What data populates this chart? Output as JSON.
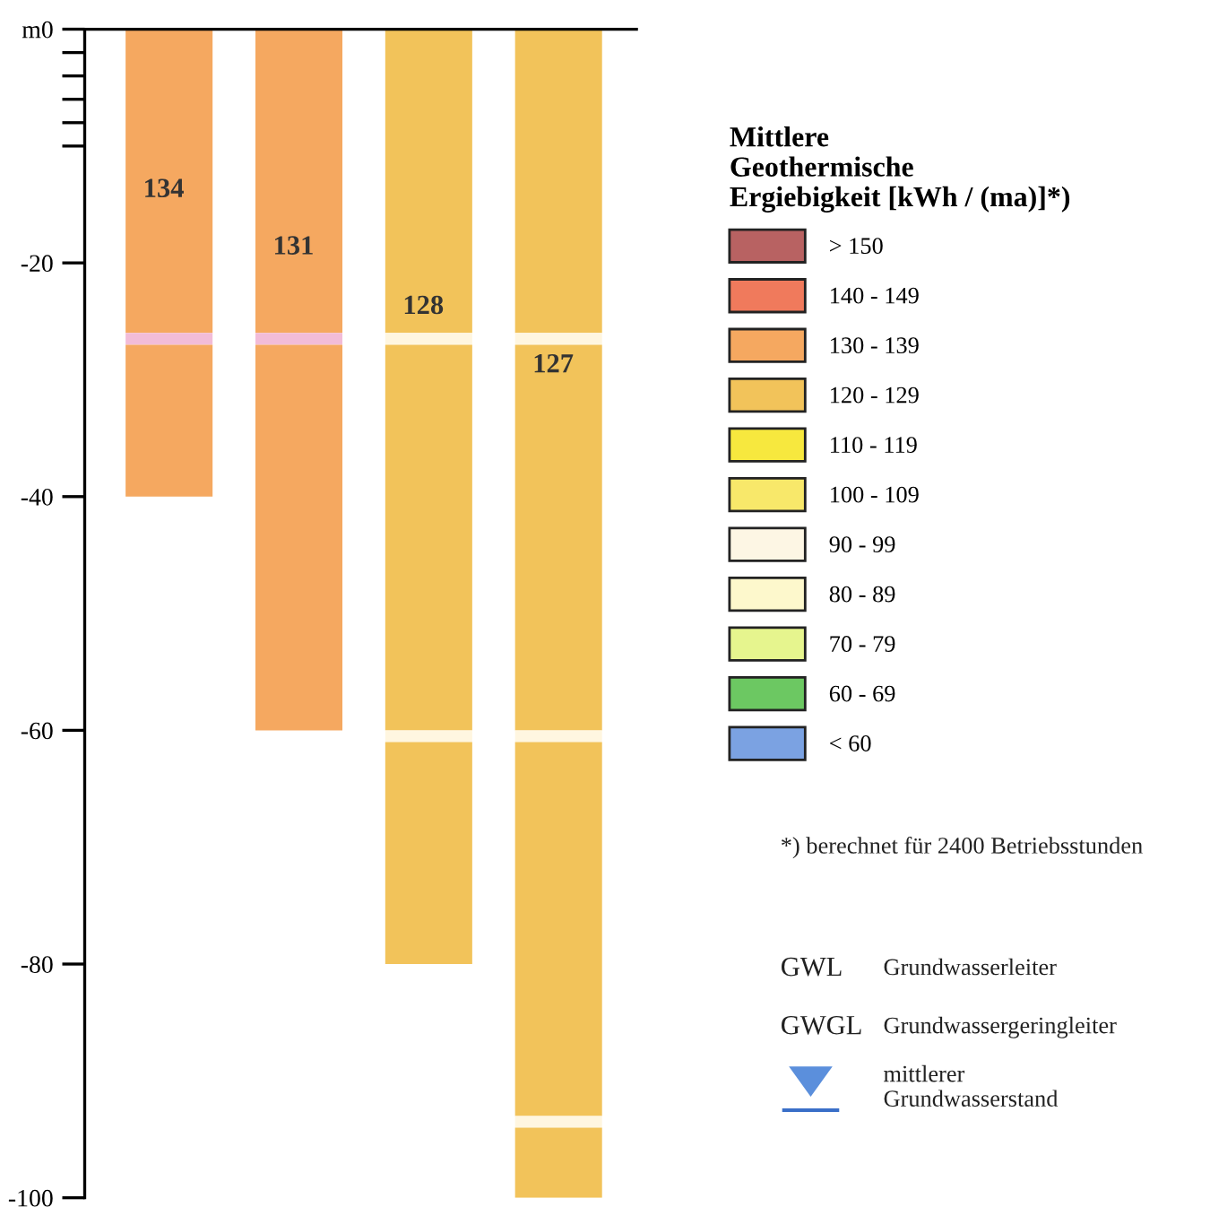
{
  "chart_data": {
    "type": "bar",
    "stacked": true,
    "categories": [
      null,
      null,
      null,
      null
    ],
    "series": [
      {
        "colors": [
          "#f5a860",
          "#f5a860",
          "#f2c35a",
          "#f2c35a"
        ],
        "values": [
          -26,
          -26,
          -26,
          -26
        ]
      },
      {
        "colors": [
          "#f2bcd8",
          "#f2bcd8",
          "#fff6e0",
          "#fff6e0"
        ],
        "values": [
          -1,
          -1,
          -1,
          -1
        ]
      },
      {
        "colors": [
          "#f5a860",
          "#f5a860",
          "#f2c35a",
          "#f2c35a"
        ],
        "values": [
          -13,
          -33,
          -33,
          -33
        ]
      },
      {
        "colors": [
          null,
          null,
          "#fff6e0",
          "#fff6e0"
        ],
        "values": [
          null,
          null,
          -1,
          -1
        ]
      },
      {
        "colors": [
          null,
          null,
          "#f2c35a",
          "#f2c35a"
        ],
        "values": [
          null,
          null,
          -19,
          -32
        ]
      },
      {
        "colors": [
          null,
          null,
          null,
          "#fff6e0"
        ],
        "values": [
          null,
          null,
          null,
          -1
        ]
      },
      {
        "colors": [
          null,
          null,
          null,
          "#f2c35a"
        ],
        "values": [
          null,
          null,
          null,
          -6
        ]
      },
      {
        "name": "> 150",
        "color": "#b86262",
        "values": [
          null,
          null,
          null,
          null
        ]
      },
      {
        "name": "140 - 149",
        "color": "#f07a5c",
        "values": [
          null,
          null,
          null,
          null
        ]
      },
      {
        "name": "130 - 139",
        "color": "#f5a860",
        "values": [
          null,
          null,
          null,
          null
        ]
      },
      {
        "name": "120 - 129",
        "color": "#f2c35a",
        "values": [
          null,
          null,
          null,
          null
        ]
      },
      {
        "name": "110 - 119",
        "color": "#f7e83e",
        "values": [
          null,
          null,
          null,
          null
        ]
      },
      {
        "name": "100 - 109",
        "color": "#f8e86a",
        "values": [
          null,
          null,
          null,
          null
        ]
      },
      {
        "name": "90 - 99",
        "color": "#fdf6e4",
        "values": [
          null,
          null,
          null,
          null
        ]
      },
      {
        "name": "80 - 89",
        "color": "#fdf8cc",
        "values": [
          null,
          null,
          null,
          null
        ]
      },
      {
        "name": "70 - 79",
        "color": "#e6f58e",
        "values": [
          null,
          null,
          null,
          null
        ]
      },
      {
        "name": "60 - 69",
        "color": "#6cc862",
        "values": [
          null,
          null,
          null,
          null
        ]
      },
      {
        "name": "< 60",
        "color": "#7ba2e2",
        "values": [
          null,
          null,
          null,
          null
        ]
      }
    ],
    "ylim": [
      -100,
      0
    ],
    "yticks": [
      {
        "value": 0,
        "label": "m0"
      },
      {
        "value": -2,
        "label": null
      },
      {
        "value": -4,
        "label": null
      },
      {
        "value": -6,
        "label": null
      },
      {
        "value": -8,
        "label": null
      },
      {
        "value": -10,
        "label": null
      },
      -20,
      -40,
      -60,
      -80,
      -100
    ],
    "tick_labels": "y",
    "grid": false,
    "legend": "right",
    "legend_title": "Mittlere\nGeothermische\nErgiebigkeit [kWh / (ma)]*)",
    "annotations": [
      "134",
      "131",
      "128",
      "127",
      "*) berechnet für 2400 Betriebsstunden",
      "GWL",
      "Grundwasserleiter",
      "GWGL",
      "Grundwassergeringleiter",
      "mittlerer\nGrundwasserstand"
    ]
  }
}
